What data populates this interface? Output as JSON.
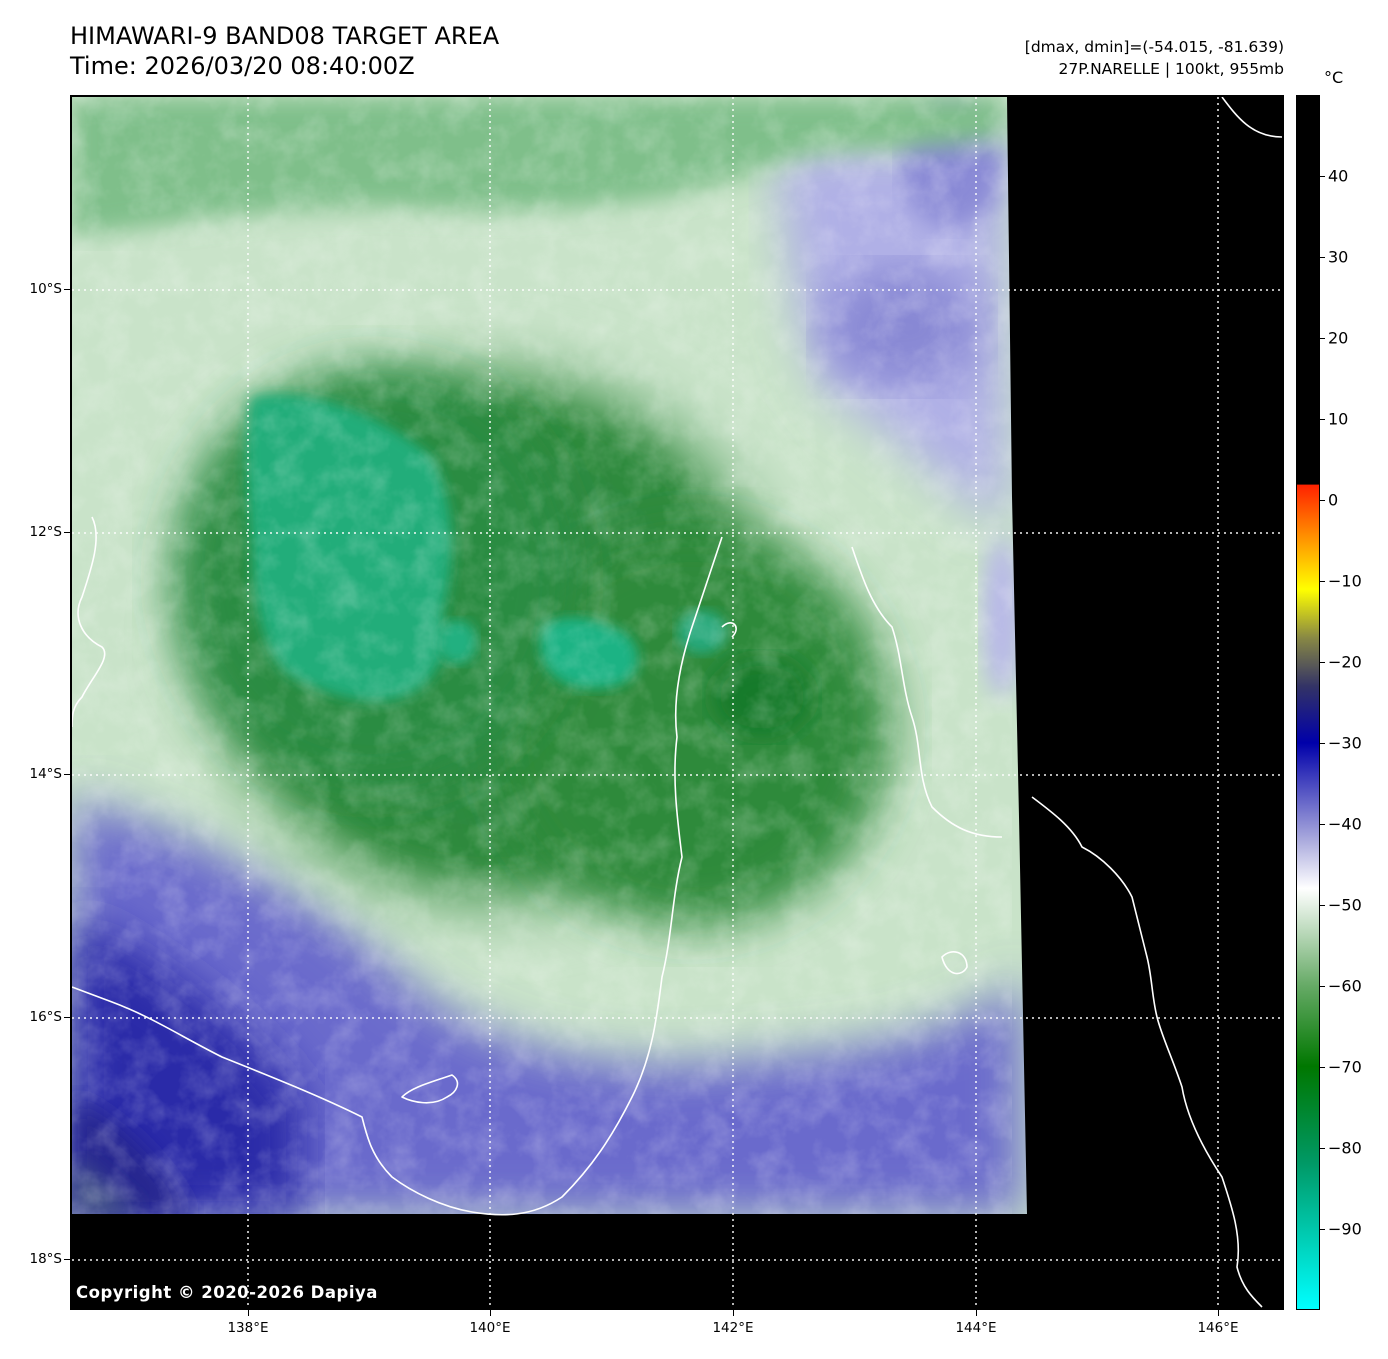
{
  "header": {
    "title_line1": "HIMAWARI-9 BAND08 TARGET AREA",
    "title_line2": "Time: 2026/03/20 08:40:00Z",
    "info_line1": "[dmax, dmin]=(-54.015, -81.639)",
    "info_line2": "27P.NARELLE | 100kt, 955mb"
  },
  "map": {
    "copyright": "Copyright © 2020-2026 Dapiya",
    "lat_labels": [
      "10°S",
      "12°S",
      "14°S",
      "16°S",
      "18°S"
    ],
    "lon_labels": [
      "138°E",
      "140°E",
      "142°E",
      "144°E",
      "146°E"
    ],
    "no_data_color": "#000000",
    "coastline_color": "#ffffff",
    "gridline_color": "#ffffff"
  },
  "colorbar": {
    "unit": "°C",
    "labels": [
      "40",
      "30",
      "20",
      "10",
      "0",
      "−10",
      "−20",
      "−30",
      "−40",
      "−50",
      "−60",
      "−70",
      "−80",
      "−90"
    ],
    "range": [
      -100,
      50
    ],
    "stops": [
      {
        "value": 50,
        "color": "#000000"
      },
      {
        "value": 2,
        "color": "#000000"
      },
      {
        "value": 1.9,
        "color": "#ff2200"
      },
      {
        "value": -5,
        "color": "#ff9900"
      },
      {
        "value": -11,
        "color": "#ffff00"
      },
      {
        "value": -17,
        "color": "#888844"
      },
      {
        "value": -23,
        "color": "#333366"
      },
      {
        "value": -30,
        "color": "#0000aa"
      },
      {
        "value": -42,
        "color": "#aaaadd"
      },
      {
        "value": -48,
        "color": "#ffffff"
      },
      {
        "value": -60,
        "color": "#66aa66"
      },
      {
        "value": -70,
        "color": "#007700"
      },
      {
        "value": -82,
        "color": "#009966"
      },
      {
        "value": -100,
        "color": "#00ffff"
      }
    ]
  }
}
